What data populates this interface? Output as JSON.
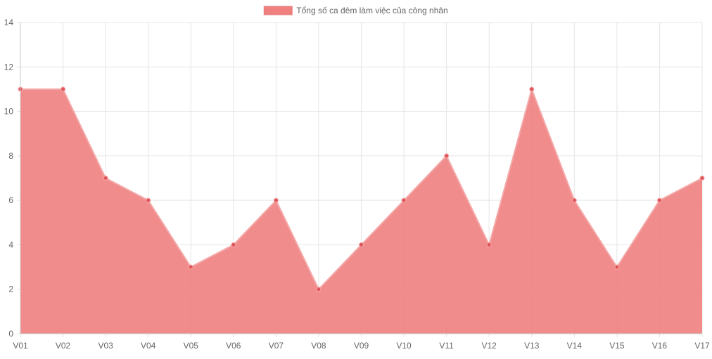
{
  "chart_data": {
    "type": "area",
    "categories": [
      "V01",
      "V02",
      "V03",
      "V04",
      "V05",
      "V06",
      "V07",
      "V08",
      "V09",
      "V10",
      "V11",
      "V12",
      "V13",
      "V14",
      "V15",
      "V16",
      "V17"
    ],
    "series": [
      {
        "name": "Tổng số ca đêm làm việc của công nhân",
        "values": [
          11,
          11,
          7,
          6,
          3,
          4,
          6,
          2,
          4,
          6,
          8,
          4,
          11,
          6,
          3,
          6,
          7
        ],
        "fill_color": "#f07f7f",
        "line_color": "#f4a9a9",
        "point_color": "#e0555a"
      }
    ],
    "y_ticks": [
      0,
      2,
      4,
      6,
      8,
      10,
      12,
      14
    ],
    "ylim": [
      0,
      14
    ],
    "grid": true,
    "legend_position": "top-center",
    "title": "",
    "xlabel": "",
    "ylabel": ""
  },
  "colors": {
    "grid": "#e5e5e5",
    "axis": "#c8c8c8",
    "tick_text": "#666666"
  }
}
